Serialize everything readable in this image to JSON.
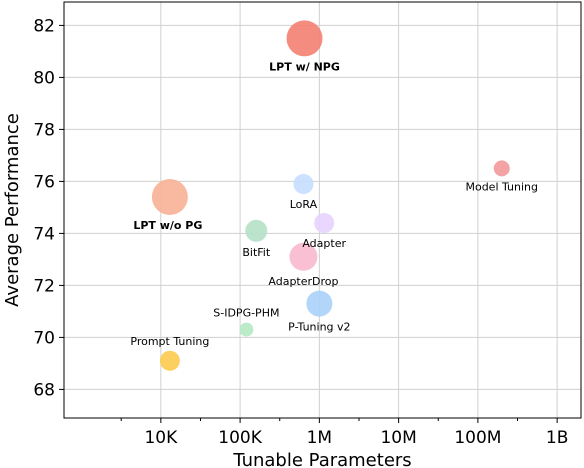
{
  "chart_data": {
    "type": "scatter",
    "xlabel": "Tunable Parameters",
    "ylabel": "Average Performance",
    "x_scale": "log",
    "xlim": [
      600,
      2000000000
    ],
    "ylim": [
      66.9,
      82.9
    ],
    "x_ticks": [
      {
        "value": 10000,
        "label": "10K"
      },
      {
        "value": 100000,
        "label": "100K"
      },
      {
        "value": 1000000,
        "label": "1M"
      },
      {
        "value": 10000000,
        "label": "10M"
      },
      {
        "value": 100000000,
        "label": "100M"
      },
      {
        "value": 1000000000,
        "label": "1B"
      }
    ],
    "y_ticks": [
      68,
      70,
      72,
      74,
      76,
      78,
      80,
      82
    ],
    "grid": true,
    "points": [
      {
        "label": "LPT w/ NPG",
        "x": 650000,
        "y": 81.5,
        "size": 18,
        "color": "#f47f72",
        "label_color": "#f47f72",
        "bold": true,
        "label_anchor": "below"
      },
      {
        "label": "LPT w/o PG",
        "x": 13000,
        "y": 75.4,
        "size": 18,
        "color": "#f8b196",
        "label_color": "#f8b196",
        "bold": true,
        "label_anchor": "below-left"
      },
      {
        "label": "Model Tuning",
        "x": 200000000,
        "y": 76.5,
        "size": 8,
        "color": "#f2999a",
        "label_color": "#000000",
        "bold": false,
        "label_anchor": "below"
      },
      {
        "label": "LoRA",
        "x": 630000,
        "y": 75.9,
        "size": 10,
        "color": "#c7deff",
        "label_color": "#000000",
        "bold": false,
        "label_anchor": "below"
      },
      {
        "label": "Adapter",
        "x": 1150000,
        "y": 74.4,
        "size": 10,
        "color": "#e7d3ff",
        "label_color": "#000000",
        "bold": false,
        "label_anchor": "below"
      },
      {
        "label": "BitFit",
        "x": 160000,
        "y": 74.1,
        "size": 11,
        "color": "#b5e1c8",
        "label_color": "#000000",
        "bold": false,
        "label_anchor": "below"
      },
      {
        "label": "AdapterDrop",
        "x": 630000,
        "y": 73.1,
        "size": 14,
        "color": "#f8b9cf",
        "label_color": "#000000",
        "bold": false,
        "label_anchor": "below"
      },
      {
        "label": "S-IDPG-PHM",
        "x": 120000,
        "y": 70.3,
        "size": 7,
        "color": "#b5e9c4",
        "label_color": "#000000",
        "bold": false,
        "label_anchor": "above"
      },
      {
        "label": "P-Tuning v2",
        "x": 1000000,
        "y": 71.3,
        "size": 13,
        "color": "#a8d1f8",
        "label_color": "#000000",
        "bold": false,
        "label_anchor": "below"
      },
      {
        "label": "Prompt Tuning",
        "x": 13000,
        "y": 69.1,
        "size": 10,
        "color": "#fbcb4f",
        "label_color": "#000000",
        "bold": false,
        "label_anchor": "above"
      }
    ]
  }
}
